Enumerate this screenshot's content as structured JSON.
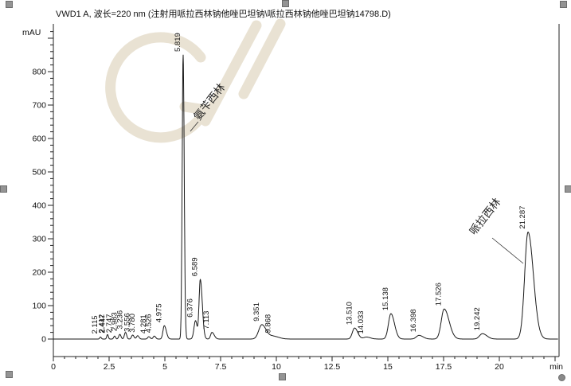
{
  "header": {
    "title": "VWD1 A, 波长=220 nm (注射用哌拉西林钠他唑巴坦钠\\哌拉西林钠他唑巴坦钠14798.D)"
  },
  "chart_data": {
    "type": "line",
    "title": "VWD1 A, 波长=220 nm (注射用哌拉西林钠他唑巴坦钠\\哌拉西林钠他唑巴坦钠14798.D)",
    "ylabel": "mAU",
    "xlabel": "min",
    "xlim": [
      0,
      22.6
    ],
    "ylim": [
      0,
      940
    ],
    "grid": false,
    "trace_color": "#1a1a1a",
    "x_major_ticks": [
      0,
      2.5,
      5,
      7.5,
      10,
      12.5,
      15,
      17.5,
      20
    ],
    "x_major_tick_labels": [
      "0",
      "2.5",
      "5",
      "7.5",
      "10",
      "12.5",
      "15",
      "17.5",
      "20"
    ],
    "x_minor_step": 0.5,
    "y_major_step": 100,
    "y_minor_step": 20,
    "y_labeled_ticks": [
      0,
      100,
      200,
      300,
      400,
      500,
      600,
      700,
      800
    ],
    "y_labeled_tick_labels": [
      "0",
      "100",
      "200",
      "300",
      "400",
      "500",
      "600",
      "700",
      "800"
    ],
    "peaks": [
      {
        "rt": 2.115,
        "label": "2.115",
        "height_mau": 6,
        "sigma_left": 0.035,
        "sigma_right": 0.035
      },
      {
        "rt": 2.412,
        "label": "2.412",
        "height_mau": 8,
        "sigma_left": 0.03,
        "sigma_right": 0.03
      },
      {
        "rt": 2.447,
        "label": "2.447",
        "height_mau": 8,
        "sigma_left": 0.03,
        "sigma_right": 0.03
      },
      {
        "rt": 2.747,
        "label": "2.747",
        "height_mau": 9,
        "sigma_left": 0.04,
        "sigma_right": 0.04
      },
      {
        "rt": 2.983,
        "label": "2.983",
        "height_mau": 14,
        "sigma_left": 0.05,
        "sigma_right": 0.05
      },
      {
        "rt": 3.236,
        "label": "3.236",
        "height_mau": 20,
        "sigma_left": 0.05,
        "sigma_right": 0.05
      },
      {
        "rt": 3.556,
        "label": "3.556",
        "height_mau": 12,
        "sigma_left": 0.05,
        "sigma_right": 0.06
      },
      {
        "rt": 3.78,
        "label": "3.780",
        "height_mau": 10,
        "sigma_left": 0.05,
        "sigma_right": 0.06
      },
      {
        "rt": 4.281,
        "label": "4.281",
        "height_mau": 7,
        "sigma_left": 0.05,
        "sigma_right": 0.06
      },
      {
        "rt": 4.526,
        "label": "4.526",
        "height_mau": 9,
        "sigma_left": 0.05,
        "sigma_right": 0.06
      },
      {
        "rt": 4.975,
        "label": "4.975",
        "height_mau": 40,
        "sigma_left": 0.06,
        "sigma_right": 0.09
      },
      {
        "rt": 5.819,
        "label": "5.819",
        "height_mau": 850,
        "sigma_left": 0.042,
        "sigma_right": 0.05
      },
      {
        "rt": 6.376,
        "label": "6.376",
        "height_mau": 55,
        "sigma_left": 0.07,
        "sigma_right": 0.07
      },
      {
        "rt": 6.589,
        "label": "6.589",
        "height_mau": 178,
        "sigma_left": 0.055,
        "sigma_right": 0.09
      },
      {
        "rt": 7.113,
        "label": "7.113",
        "height_mau": 20,
        "sigma_left": 0.06,
        "sigma_right": 0.1
      },
      {
        "rt": 9.351,
        "label": "9.351",
        "height_mau": 43,
        "sigma_left": 0.14,
        "sigma_right": 0.2
      },
      {
        "rt": 9.868,
        "label": "9.868",
        "height_mau": 8,
        "sigma_left": 0.15,
        "sigma_right": 0.25
      },
      {
        "rt": 13.51,
        "label": "13.510",
        "height_mau": 33,
        "sigma_left": 0.1,
        "sigma_right": 0.14
      },
      {
        "rt": 14.033,
        "label": "14.033",
        "height_mau": 6,
        "sigma_left": 0.12,
        "sigma_right": 0.18
      },
      {
        "rt": 15.138,
        "label": "15.138",
        "height_mau": 76,
        "sigma_left": 0.11,
        "sigma_right": 0.16
      },
      {
        "rt": 16.398,
        "label": "16.398",
        "height_mau": 11,
        "sigma_left": 0.12,
        "sigma_right": 0.18
      },
      {
        "rt": 17.526,
        "label": "17.526",
        "height_mau": 90,
        "sigma_left": 0.13,
        "sigma_right": 0.22
      },
      {
        "rt": 19.242,
        "label": "19.242",
        "height_mau": 16,
        "sigma_left": 0.13,
        "sigma_right": 0.2
      },
      {
        "rt": 21.287,
        "label": "21.287",
        "height_mau": 320,
        "sigma_left": 0.15,
        "sigma_right": 0.24
      }
    ],
    "annotations": [
      {
        "text": "氨苄西林",
        "peak_rt": 5.819
      },
      {
        "text": "哌拉西林",
        "peak_rt": 21.287
      }
    ]
  }
}
